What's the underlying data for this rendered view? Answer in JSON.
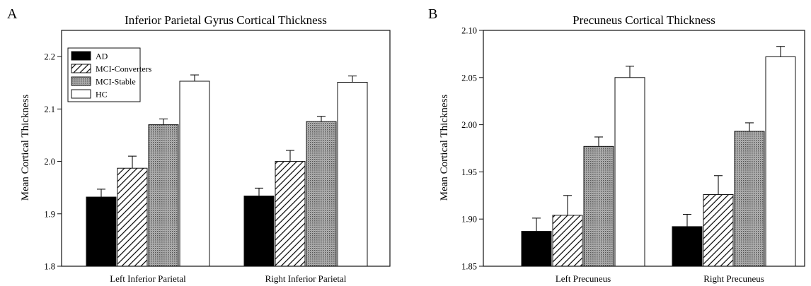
{
  "figure": {
    "colors": {
      "AD": "#000000",
      "MCI-Converters": "#ffffff",
      "MCI-Stable": "#9a9a9a",
      "HC": "#ffffff"
    },
    "fills": {
      "AD": "solid",
      "MCI-Converters": "diagonal-hatch",
      "MCI-Stable": "dotted-gray",
      "HC": "white"
    }
  },
  "chart_data": [
    {
      "panel": "A",
      "type": "bar",
      "title": "Inferior Parietal Gyrus Cortical Thickness",
      "xlabel": "",
      "ylabel": "Mean Cortical Thickness",
      "ylim": [
        1.8,
        2.25
      ],
      "yticks": [
        1.8,
        1.9,
        2.0,
        2.1,
        2.2
      ],
      "ytick_labels": [
        "1.8",
        "1.9",
        "2.0",
        "2.1",
        "2.2"
      ],
      "categories": [
        "Left Inferior Parietal",
        "Right Inferior Parietal"
      ],
      "legend": {
        "placement": "top-left",
        "entries": [
          "AD",
          "MCI-Converters",
          "MCI-Stable",
          "HC"
        ]
      },
      "series": [
        {
          "name": "AD",
          "values": [
            1.932,
            1.934
          ],
          "errors": [
            0.015,
            0.015
          ]
        },
        {
          "name": "MCI-Converters",
          "values": [
            1.987,
            2.0
          ],
          "errors": [
            0.023,
            0.021
          ]
        },
        {
          "name": "MCI-Stable",
          "values": [
            2.07,
            2.076
          ],
          "errors": [
            0.011,
            0.01
          ]
        },
        {
          "name": "HC",
          "values": [
            2.153,
            2.151
          ],
          "errors": [
            0.012,
            0.012
          ]
        }
      ]
    },
    {
      "panel": "B",
      "type": "bar",
      "title": "Precuneus Cortical Thickness",
      "xlabel": "",
      "ylabel": "Mean Cortical Thickness",
      "ylim": [
        1.85,
        2.1
      ],
      "yticks": [
        1.85,
        1.9,
        1.95,
        2.0,
        2.05,
        2.1
      ],
      "ytick_labels": [
        "1.85",
        "1.90",
        "1.95",
        "2.00",
        "2.05",
        "2.10"
      ],
      "categories": [
        "Left Precuneus",
        "Right Precuneus"
      ],
      "series": [
        {
          "name": "AD",
          "values": [
            1.887,
            1.892
          ],
          "errors": [
            0.014,
            0.013
          ]
        },
        {
          "name": "MCI-Converters",
          "values": [
            1.904,
            1.926
          ],
          "errors": [
            0.021,
            0.02
          ]
        },
        {
          "name": "MCI-Stable",
          "values": [
            1.977,
            1.993
          ],
          "errors": [
            0.01,
            0.009
          ]
        },
        {
          "name": "HC",
          "values": [
            2.05,
            2.072
          ],
          "errors": [
            0.012,
            0.011
          ]
        }
      ]
    }
  ]
}
